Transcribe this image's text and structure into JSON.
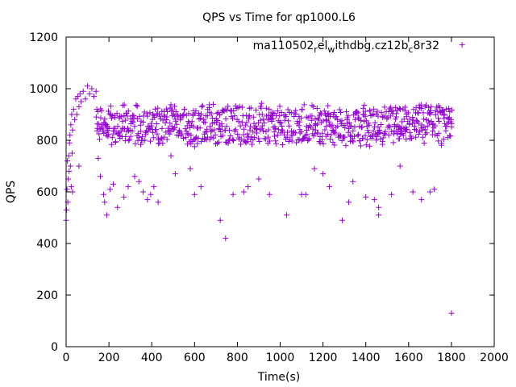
{
  "chart_data": {
    "type": "scatter",
    "title": "QPS vs Time for qp1000.L6",
    "xlabel": "Time(s)",
    "ylabel": "QPS",
    "xlim": [
      0,
      2000
    ],
    "ylim": [
      0,
      1200
    ],
    "xticks": [
      "0",
      "200",
      "400",
      "600",
      "800",
      "1000",
      "1200",
      "1400",
      "1600",
      "1800",
      "2000"
    ],
    "yticks": [
      "0",
      "200",
      "400",
      "600",
      "800",
      "1000",
      "1200"
    ],
    "legend": {
      "position": "top-right",
      "label_base": "ma110502",
      "label_sub1": "r",
      "label_mid1": "el",
      "label_sub2": "w",
      "label_mid2": "ithdbg.cz12b",
      "label_sub3": "c",
      "label_tail": "8r32"
    },
    "marker_color": "#9400d3",
    "series": [
      {
        "name": "ma110502_rel_withdbg.cz12b_c8r32",
        "band": {
          "x_start": 0,
          "x_end": 1800,
          "x_step": 5,
          "y_center": 860,
          "y_amplitude": 70
        },
        "early_points": [
          [
            0,
            490
          ],
          [
            2,
            530
          ],
          [
            4,
            610
          ],
          [
            6,
            720
          ],
          [
            8,
            560
          ],
          [
            10,
            650
          ],
          [
            12,
            740
          ],
          [
            14,
            680
          ],
          [
            16,
            790
          ],
          [
            18,
            820
          ],
          [
            20,
            700
          ],
          [
            22,
            860
          ],
          [
            24,
            620
          ],
          [
            26,
            900
          ],
          [
            28,
            750
          ],
          [
            30,
            840
          ],
          [
            35,
            920
          ],
          [
            40,
            880
          ],
          [
            45,
            960
          ],
          [
            50,
            900
          ],
          [
            55,
            970
          ],
          [
            60,
            930
          ],
          [
            65,
            980
          ],
          [
            70,
            950
          ],
          [
            80,
            990
          ],
          [
            90,
            960
          ],
          [
            100,
            1010
          ],
          [
            110,
            980
          ],
          [
            120,
            1000
          ],
          [
            130,
            970
          ],
          [
            140,
            990
          ]
        ],
        "outliers": [
          [
            30,
            600
          ],
          [
            60,
            700
          ],
          [
            150,
            730
          ],
          [
            160,
            660
          ],
          [
            175,
            590
          ],
          [
            180,
            560
          ],
          [
            190,
            510
          ],
          [
            205,
            610
          ],
          [
            220,
            630
          ],
          [
            240,
            540
          ],
          [
            270,
            580
          ],
          [
            290,
            620
          ],
          [
            320,
            660
          ],
          [
            340,
            640
          ],
          [
            360,
            600
          ],
          [
            380,
            570
          ],
          [
            395,
            590
          ],
          [
            410,
            620
          ],
          [
            430,
            560
          ],
          [
            490,
            740
          ],
          [
            510,
            670
          ],
          [
            580,
            690
          ],
          [
            600,
            590
          ],
          [
            630,
            620
          ],
          [
            720,
            490
          ],
          [
            745,
            420
          ],
          [
            780,
            590
          ],
          [
            830,
            600
          ],
          [
            850,
            620
          ],
          [
            900,
            650
          ],
          [
            950,
            590
          ],
          [
            1030,
            510
          ],
          [
            1100,
            590
          ],
          [
            1120,
            590
          ],
          [
            1160,
            690
          ],
          [
            1200,
            670
          ],
          [
            1230,
            620
          ],
          [
            1290,
            490
          ],
          [
            1320,
            560
          ],
          [
            1340,
            640
          ],
          [
            1400,
            580
          ],
          [
            1440,
            570
          ],
          [
            1460,
            510
          ],
          [
            1460,
            540
          ],
          [
            1520,
            590
          ],
          [
            1560,
            700
          ],
          [
            1620,
            600
          ],
          [
            1660,
            570
          ],
          [
            1700,
            600
          ],
          [
            1720,
            610
          ],
          [
            1800,
            130
          ]
        ],
        "legend_marker": [
          1850,
          1170
        ]
      }
    ]
  }
}
